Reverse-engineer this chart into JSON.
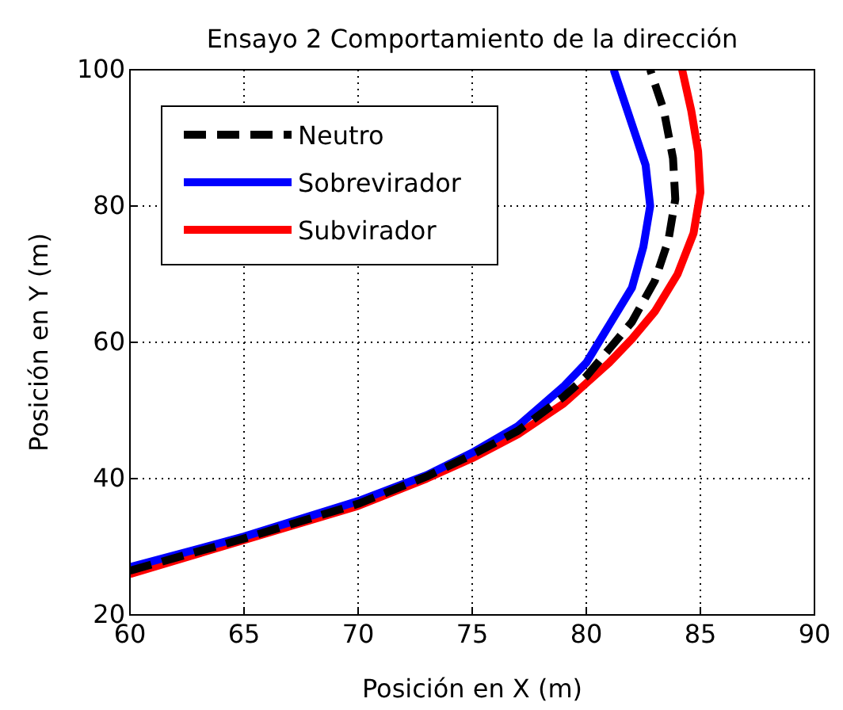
{
  "chart_data": {
    "type": "line",
    "title": "Ensayo 2 Comportamiento de la dirección",
    "xlabel": "Posición en X (m)",
    "ylabel": "Posición en Y (m)",
    "xlim": [
      60,
      90
    ],
    "xticks": [
      60,
      65,
      70,
      75,
      80,
      85,
      90
    ],
    "ylim": [
      20,
      100
    ],
    "yticks": [
      20,
      40,
      60,
      80,
      100
    ],
    "grid": true,
    "legend": "top left",
    "marker": "none",
    "series": [
      {
        "name": "Neutro",
        "color": "#000000",
        "line_style": "dashed",
        "x": [
          60,
          65,
          70,
          73,
          75,
          77,
          79,
          80,
          81,
          82,
          83,
          83.6,
          83.9,
          83.8,
          83.4,
          82.8
        ],
        "values": [
          26.5,
          31.2,
          36.3,
          40.3,
          43.5,
          47,
          52,
          55,
          59,
          63,
          69,
          75,
          81,
          87,
          94,
          100
        ]
      },
      {
        "name": "Sobrevirador",
        "color": "#0000ff",
        "line_style": "solid",
        "x": [
          60,
          65,
          70,
          73,
          75,
          77,
          79,
          80,
          81,
          82,
          82.5,
          82.8,
          82.6,
          82,
          81.2
        ],
        "values": [
          27,
          31.5,
          36.7,
          40.5,
          43.8,
          47.7,
          53.5,
          57,
          62.5,
          68,
          74,
          80,
          86,
          92,
          100
        ]
      },
      {
        "name": "Subvirador",
        "color": "#ff0000",
        "line_style": "solid",
        "x": [
          60,
          65,
          70,
          73,
          75,
          77,
          79,
          80,
          81,
          82,
          83,
          84,
          84.7,
          85,
          84.9,
          84.6,
          84.2
        ],
        "values": [
          26,
          31,
          36,
          40,
          43,
          46.5,
          51,
          54,
          57,
          60.5,
          64.5,
          70,
          76,
          82,
          88,
          94,
          100
        ]
      }
    ]
  }
}
